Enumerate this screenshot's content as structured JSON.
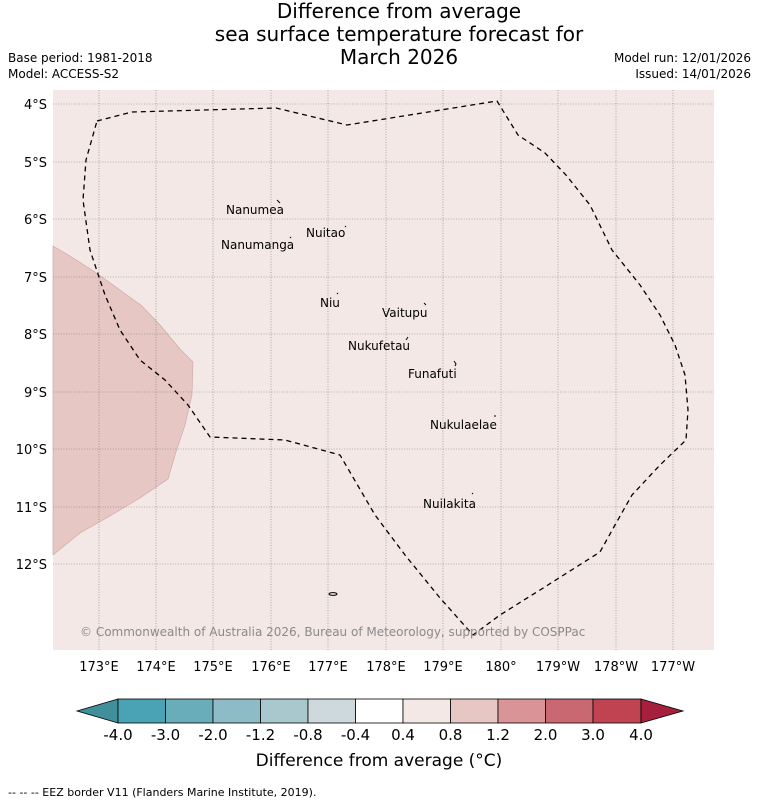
{
  "title": {
    "line1": "Difference from average",
    "line2": "sea surface temperature forecast for",
    "line3": "March 2026"
  },
  "meta": {
    "base_period": "Base period: 1981-2018",
    "model": "Model: ACCESS-S2",
    "model_run": "Model run: 12/01/2026",
    "issued": "Issued: 14/01/2026"
  },
  "map": {
    "background_color": "#f4e8e7",
    "anomaly_color": "#e6c7c4",
    "lat_labels": [
      "4°S",
      "5°S",
      "6°S",
      "7°S",
      "8°S",
      "9°S",
      "10°S",
      "11°S",
      "12°S"
    ],
    "lon_labels": [
      "173°E",
      "174°E",
      "175°E",
      "176°E",
      "177°E",
      "178°E",
      "179°E",
      "180°",
      "179°W",
      "178°W",
      "177°W"
    ],
    "islands": [
      "Nanumea",
      "Nuitao",
      "Nanumanga",
      "Niu",
      "Vaitupu",
      "Nukufetau",
      "Funafuti",
      "Nukulaelae",
      "Nuilakita"
    ],
    "copyright": "© Commonwealth of Australia 2026, Bureau of Meteorology, supported by COSPPac"
  },
  "colorbar": {
    "ticks": [
      "-4.0",
      "-3.0",
      "-2.0",
      "-1.2",
      "-0.8",
      "-0.4",
      "0.4",
      "0.8",
      "1.2",
      "2.0",
      "3.0",
      "4.0"
    ],
    "colors": [
      "#418f9b",
      "#4aa3b4",
      "#69adbb",
      "#8dbcc6",
      "#a9c8cd",
      "#cdd9dd",
      "#ffffff",
      "#f4e8e7",
      "#e6c7c4",
      "#d99498",
      "#ca6872",
      "#c04352",
      "#a61f3c"
    ],
    "label": "Difference from average (°C)"
  },
  "footer": "--  --  -- EEZ border V11 (Flanders Marine Institute, 2019)."
}
